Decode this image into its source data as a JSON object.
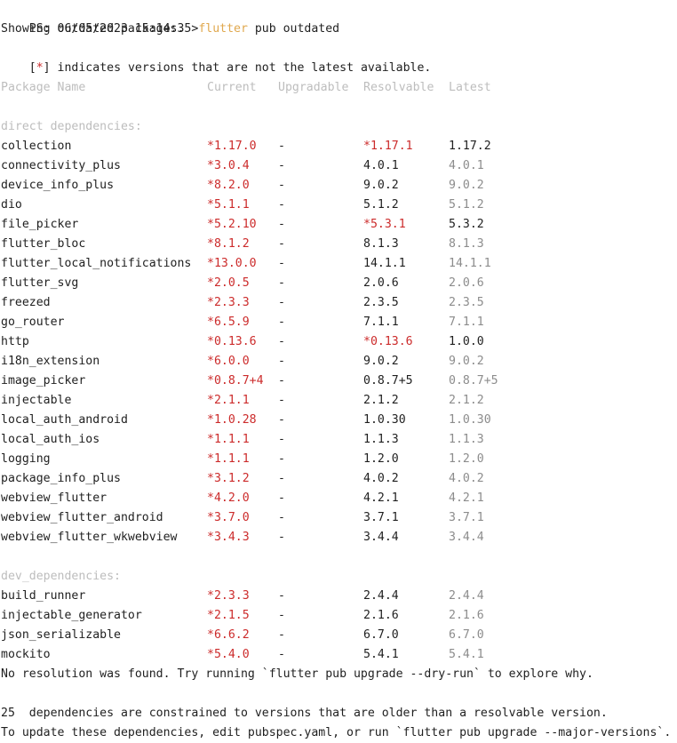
{
  "prompt": {
    "prefix": "PS: 06/05/2023 15:14:35>",
    "command": "flutter",
    "args": " pub outdated"
  },
  "intro": {
    "line1": "Showing outdated packages.",
    "line2_open": "[",
    "line2_star": "*",
    "line2_rest": "] indicates versions that are not the latest available."
  },
  "headers": {
    "name": "Package Name",
    "current": "Current",
    "upgradable": "Upgradable",
    "resolvable": "Resolvable",
    "latest": "Latest"
  },
  "sections": {
    "direct": "direct dependencies:",
    "dev": "dev_dependencies:"
  },
  "direct_rows": [
    {
      "name": "collection",
      "current": "*1.17.0",
      "upgradable": "-",
      "resolvable": "*1.17.1",
      "resolvable_red": true,
      "latest": "1.17.2",
      "latest_dim": false
    },
    {
      "name": "connectivity_plus",
      "current": "*3.0.4",
      "upgradable": "-",
      "resolvable": "4.0.1",
      "resolvable_red": false,
      "latest": "4.0.1",
      "latest_dim": true
    },
    {
      "name": "device_info_plus",
      "current": "*8.2.0",
      "upgradable": "-",
      "resolvable": "9.0.2",
      "resolvable_red": false,
      "latest": "9.0.2",
      "latest_dim": true
    },
    {
      "name": "dio",
      "current": "*5.1.1",
      "upgradable": "-",
      "resolvable": "5.1.2",
      "resolvable_red": false,
      "latest": "5.1.2",
      "latest_dim": true
    },
    {
      "name": "file_picker",
      "current": "*5.2.10",
      "upgradable": "-",
      "resolvable": "*5.3.1",
      "resolvable_red": true,
      "latest": "5.3.2",
      "latest_dim": false
    },
    {
      "name": "flutter_bloc",
      "current": "*8.1.2",
      "upgradable": "-",
      "resolvable": "8.1.3",
      "resolvable_red": false,
      "latest": "8.1.3",
      "latest_dim": true
    },
    {
      "name": "flutter_local_notifications",
      "current": "*13.0.0",
      "upgradable": "-",
      "resolvable": "14.1.1",
      "resolvable_red": false,
      "latest": "14.1.1",
      "latest_dim": true
    },
    {
      "name": "flutter_svg",
      "current": "*2.0.5",
      "upgradable": "-",
      "resolvable": "2.0.6",
      "resolvable_red": false,
      "latest": "2.0.6",
      "latest_dim": true
    },
    {
      "name": "freezed",
      "current": "*2.3.3",
      "upgradable": "-",
      "resolvable": "2.3.5",
      "resolvable_red": false,
      "latest": "2.3.5",
      "latest_dim": true
    },
    {
      "name": "go_router",
      "current": "*6.5.9",
      "upgradable": "-",
      "resolvable": "7.1.1",
      "resolvable_red": false,
      "latest": "7.1.1",
      "latest_dim": true
    },
    {
      "name": "http",
      "current": "*0.13.6",
      "upgradable": "-",
      "resolvable": "*0.13.6",
      "resolvable_red": true,
      "latest": "1.0.0",
      "latest_dim": false
    },
    {
      "name": "i18n_extension",
      "current": "*6.0.0",
      "upgradable": "-",
      "resolvable": "9.0.2",
      "resolvable_red": false,
      "latest": "9.0.2",
      "latest_dim": true
    },
    {
      "name": "image_picker",
      "current": "*0.8.7+4",
      "upgradable": "-",
      "resolvable": "0.8.7+5",
      "resolvable_red": false,
      "latest": "0.8.7+5",
      "latest_dim": true
    },
    {
      "name": "injectable",
      "current": "*2.1.1",
      "upgradable": "-",
      "resolvable": "2.1.2",
      "resolvable_red": false,
      "latest": "2.1.2",
      "latest_dim": true
    },
    {
      "name": "local_auth_android",
      "current": "*1.0.28",
      "upgradable": "-",
      "resolvable": "1.0.30",
      "resolvable_red": false,
      "latest": "1.0.30",
      "latest_dim": true
    },
    {
      "name": "local_auth_ios",
      "current": "*1.1.1",
      "upgradable": "-",
      "resolvable": "1.1.3",
      "resolvable_red": false,
      "latest": "1.1.3",
      "latest_dim": true
    },
    {
      "name": "logging",
      "current": "*1.1.1",
      "upgradable": "-",
      "resolvable": "1.2.0",
      "resolvable_red": false,
      "latest": "1.2.0",
      "latest_dim": true
    },
    {
      "name": "package_info_plus",
      "current": "*3.1.2",
      "upgradable": "-",
      "resolvable": "4.0.2",
      "resolvable_red": false,
      "latest": "4.0.2",
      "latest_dim": true
    },
    {
      "name": "webview_flutter",
      "current": "*4.2.0",
      "upgradable": "-",
      "resolvable": "4.2.1",
      "resolvable_red": false,
      "latest": "4.2.1",
      "latest_dim": true
    },
    {
      "name": "webview_flutter_android",
      "current": "*3.7.0",
      "upgradable": "-",
      "resolvable": "3.7.1",
      "resolvable_red": false,
      "latest": "3.7.1",
      "latest_dim": true
    },
    {
      "name": "webview_flutter_wkwebview",
      "current": "*3.4.3",
      "upgradable": "-",
      "resolvable": "3.4.4",
      "resolvable_red": false,
      "latest": "3.4.4",
      "latest_dim": true
    }
  ],
  "dev_rows": [
    {
      "name": "build_runner",
      "current": "*2.3.3",
      "upgradable": "-",
      "resolvable": "2.4.4",
      "resolvable_red": false,
      "latest": "2.4.4",
      "latest_dim": true
    },
    {
      "name": "injectable_generator",
      "current": "*2.1.5",
      "upgradable": "-",
      "resolvable": "2.1.6",
      "resolvable_red": false,
      "latest": "2.1.6",
      "latest_dim": true
    },
    {
      "name": "json_serializable",
      "current": "*6.6.2",
      "upgradable": "-",
      "resolvable": "6.7.0",
      "resolvable_red": false,
      "latest": "6.7.0",
      "latest_dim": true
    },
    {
      "name": "mockito",
      "current": "*5.4.0",
      "upgradable": "-",
      "resolvable": "5.4.1",
      "resolvable_red": false,
      "latest": "5.4.1",
      "latest_dim": true
    }
  ],
  "footer": {
    "no_resolution": "No resolution was found. Try running `flutter pub upgrade --dry-run` to explore why.",
    "constrained": "25  dependencies are constrained to versions that are older than a resolvable version.",
    "to_update": "To update these dependencies, edit pubspec.yaml, or run `flutter pub upgrade --major-versions`."
  },
  "colors": {
    "star_red": "#cc2b2b",
    "command_orange": "#e0a84e",
    "muted_header": "#bdbdbd",
    "dim_latest": "#8c8c8c",
    "text": "#1f1f1f",
    "background": "#ffffff"
  }
}
